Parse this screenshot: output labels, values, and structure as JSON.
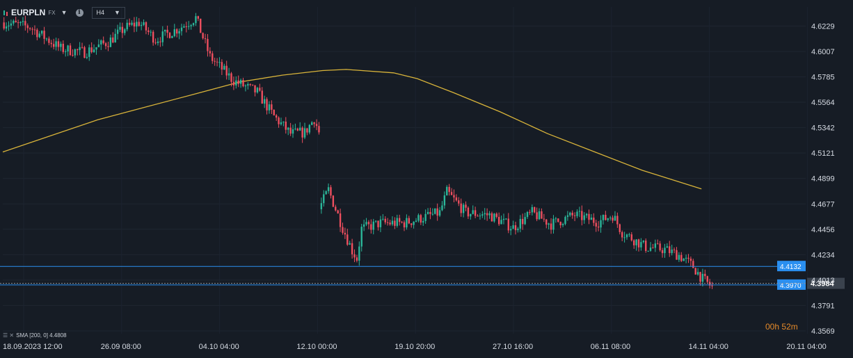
{
  "header": {
    "symbol": "EURPLN",
    "market": "FX",
    "info": "i",
    "timeframe": "H4"
  },
  "indicator": {
    "label": "SMA [200, 0] 4.4808"
  },
  "countdown": {
    "hours": "00",
    "h": "h",
    "minutes": "52",
    "m": "m"
  },
  "colors": {
    "background": "#161c25",
    "up": "#2bb79a",
    "down": "#ef4f5f",
    "sma": "#d9b43a",
    "hline": "#2a8ff0",
    "current_label": "#c9ced5"
  },
  "chart_data": {
    "type": "candlestick",
    "title": "EURPLN",
    "y_axis": {
      "ticks": [
        4.6229,
        4.6007,
        4.5785,
        4.5564,
        4.5342,
        4.5121,
        4.4899,
        4.4677,
        4.4456,
        4.4234,
        4.4013,
        4.3791,
        4.3569
      ],
      "tick_labels": [
        "4.6229",
        "4.6007",
        "4.5785",
        "4.5564",
        "4.5342",
        "4.5121",
        "4.4899",
        "4.4677",
        "4.4456",
        "4.4234",
        "4.4013",
        "4.3791",
        "4.3569"
      ],
      "range": [
        4.3545,
        4.6395
      ]
    },
    "x_axis": {
      "labels": [
        "18.09.2023  12:00",
        "26.09  08:00",
        "04.10  04:00",
        "12.10  00:00",
        "19.10  20:00",
        "27.10  16:00",
        "06.11  08:00",
        "14.11  04:00",
        "20.11  04:00"
      ],
      "bars_per_day": 6,
      "range_bars": [
        0,
        339
      ]
    },
    "price_lines": [
      {
        "value": 4.4132,
        "label": "4.4132"
      },
      {
        "value": 4.397,
        "label": "4.3970"
      }
    ],
    "current_price": {
      "value": 4.3984,
      "label": "4.3984"
    },
    "sma": {
      "name": "SMA [200, 0]",
      "last": 4.4808,
      "points": [
        [
          0,
          4.513
        ],
        [
          20,
          4.527
        ],
        [
          40,
          4.541
        ],
        [
          60,
          4.552
        ],
        [
          80,
          4.563
        ],
        [
          100,
          4.574
        ],
        [
          118,
          4.58
        ],
        [
          135,
          4.584
        ],
        [
          145,
          4.585
        ],
        [
          165,
          4.582
        ],
        [
          175,
          4.577
        ],
        [
          190,
          4.565
        ],
        [
          210,
          4.548
        ],
        [
          230,
          4.529
        ],
        [
          250,
          4.513
        ],
        [
          270,
          4.497
        ],
        [
          295,
          4.4808
        ]
      ]
    },
    "segments": [
      {
        "start_bar": 0,
        "start_price": 4.626,
        "anchors": [
          [
            0,
            4.626
          ],
          [
            12,
            4.622
          ],
          [
            25,
            4.603
          ],
          [
            35,
            4.6
          ],
          [
            45,
            4.609
          ],
          [
            52,
            4.621
          ],
          [
            58,
            4.626
          ],
          [
            65,
            4.611
          ],
          [
            75,
            4.621
          ],
          [
            82,
            4.63
          ],
          [
            88,
            4.596
          ],
          [
            98,
            4.575
          ],
          [
            108,
            4.565
          ],
          [
            115,
            4.544
          ],
          [
            122,
            4.529
          ],
          [
            128,
            4.53
          ],
          [
            132,
            4.542
          ],
          [
            134,
            4.53
          ]
        ]
      },
      {
        "start_bar": 134,
        "start_price": 4.463,
        "anchors": [
          [
            134,
            4.463
          ],
          [
            138,
            4.48
          ],
          [
            140,
            4.469
          ],
          [
            144,
            4.447
          ],
          [
            148,
            4.427
          ],
          [
            150,
            4.42
          ],
          [
            152,
            4.446
          ],
          [
            160,
            4.451
          ],
          [
            170,
            4.451
          ],
          [
            185,
            4.46
          ],
          [
            188,
            4.478
          ],
          [
            196,
            4.46
          ],
          [
            206,
            4.458
          ],
          [
            216,
            4.447
          ],
          [
            224,
            4.46
          ],
          [
            232,
            4.45
          ],
          [
            242,
            4.458
          ],
          [
            252,
            4.452
          ],
          [
            258,
            4.458
          ],
          [
            262,
            4.443
          ],
          [
            272,
            4.43
          ],
          [
            280,
            4.428
          ],
          [
            286,
            4.423
          ],
          [
            292,
            4.413
          ],
          [
            296,
            4.402
          ],
          [
            300,
            4.395
          ]
        ]
      }
    ]
  }
}
